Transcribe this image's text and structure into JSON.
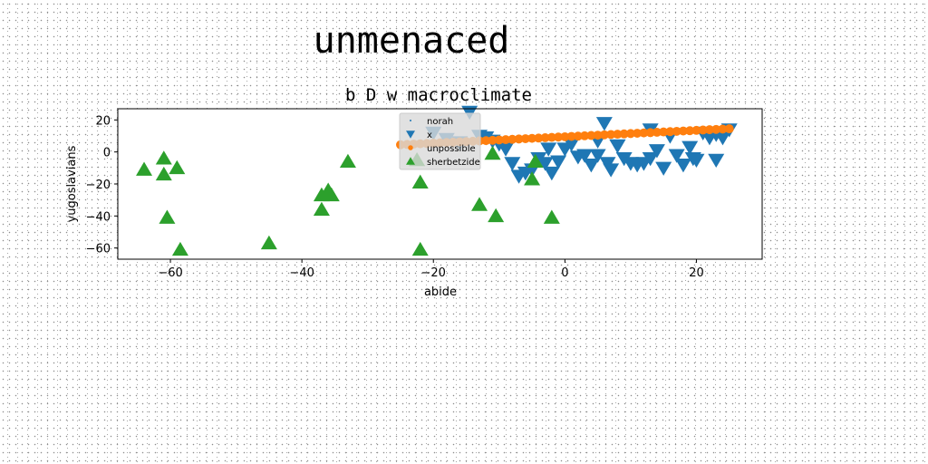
{
  "suptitle": "unmenaced",
  "chart_data": {
    "type": "scatter",
    "title": "b D w macroclimate",
    "xlabel": "abide",
    "ylabel": "yugoslavians",
    "xlim": [
      -68,
      30
    ],
    "ylim": [
      -67,
      27
    ],
    "xticks": [
      -60,
      -40,
      -20,
      0,
      20
    ],
    "yticks": [
      -60,
      -40,
      -20,
      0,
      20
    ],
    "grid": false,
    "legend_position": "top-center",
    "series": [
      {
        "name": "norah",
        "marker": "point",
        "color": "#1f77b4",
        "x": [],
        "y": []
      },
      {
        "name": "x",
        "marker": "triangle-down",
        "color": "#1f77b4",
        "x": [
          -14.5,
          -13,
          -11,
          -10,
          -9,
          -8,
          -7,
          -6,
          -5,
          -4,
          -3,
          -2.5,
          -2,
          -1,
          0,
          1,
          2,
          3,
          4,
          5,
          6,
          6.5,
          7,
          8,
          9,
          10,
          11,
          12,
          13,
          14,
          15,
          16,
          17,
          18,
          19,
          19.5,
          20,
          21,
          22,
          23,
          24,
          25,
          -20,
          -18,
          -16,
          -12,
          5,
          8,
          13,
          23
        ],
        "y": [
          25,
          10,
          7,
          5,
          2,
          -7,
          -15,
          -13,
          -11,
          -4,
          -7,
          2,
          -13,
          -6,
          2,
          5,
          -3,
          -2,
          -8,
          -2,
          18,
          -7,
          -11,
          4,
          -4,
          -7,
          -8,
          -7,
          -4,
          1,
          -10,
          10,
          -2,
          -8,
          3,
          -4,
          -5,
          12,
          9,
          11,
          9,
          14,
          12,
          8,
          6,
          9,
          7,
          4,
          14,
          -5
        ]
      },
      {
        "name": "unpossible",
        "marker": "circle",
        "color": "#ff7f0e",
        "x": [
          -25,
          -24,
          -23,
          -22,
          -21,
          -20,
          -19,
          -18,
          -17,
          -16,
          -15,
          -14,
          -13,
          -12,
          -11,
          -10,
          -9,
          -8,
          -7,
          -6,
          -5,
          -4,
          -3,
          -2,
          -1,
          0,
          1,
          2,
          3,
          4,
          5,
          6,
          7,
          8,
          9,
          10,
          11,
          12,
          13,
          14,
          15,
          16,
          17,
          18,
          19,
          20,
          21,
          22,
          23,
          24,
          25
        ],
        "y": [
          4.5,
          4.7,
          4.9,
          5.1,
          5.3,
          5.5,
          5.7,
          5.9,
          6.1,
          6.3,
          6.5,
          6.7,
          6.9,
          7.1,
          7.3,
          7.5,
          7.7,
          7.9,
          8.1,
          8.3,
          8.5,
          8.7,
          8.9,
          9.1,
          9.3,
          9.5,
          9.7,
          9.9,
          10.1,
          10.3,
          10.5,
          10.7,
          10.9,
          11.1,
          11.3,
          11.5,
          11.7,
          11.9,
          12.1,
          12.3,
          12.5,
          12.7,
          12.9,
          13.1,
          13.3,
          13.5,
          13.7,
          13.9,
          14.1,
          14.3,
          14.5
        ]
      },
      {
        "name": "sherbetzide",
        "marker": "triangle-up",
        "color": "#2ca02c",
        "x": [
          -64,
          -61,
          -61,
          -59,
          -60.5,
          -58.5,
          -45,
          -37,
          -36,
          -35.5,
          -37,
          -33,
          -22.5,
          -22,
          -22,
          -13,
          -11,
          -10.5,
          -5,
          -4.5,
          -2
        ],
        "y": [
          -11,
          -4,
          -14,
          -10,
          -41,
          -61,
          -57,
          -27,
          -24,
          -27,
          -36,
          -6,
          -5,
          -19,
          -61,
          -33,
          -1,
          -40,
          -17,
          -6,
          -41
        ]
      }
    ]
  }
}
